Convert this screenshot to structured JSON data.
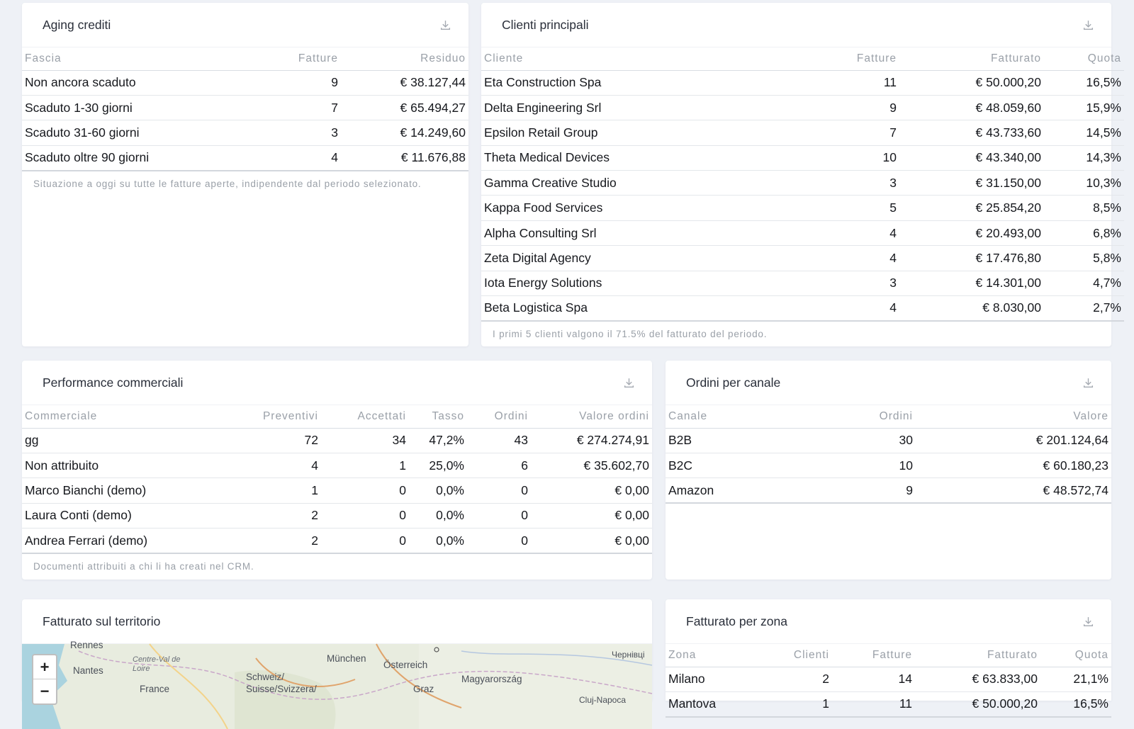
{
  "aging": {
    "title": "Aging crediti",
    "headers": [
      "Fascia",
      "Fatture",
      "Residuo"
    ],
    "rows": [
      [
        "Non ancora scaduto",
        "9",
        "€ 38.127,44"
      ],
      [
        "Scaduto 1-30 giorni",
        "7",
        "€ 65.494,27"
      ],
      [
        "Scaduto 31-60 giorni",
        "3",
        "€ 14.249,60"
      ],
      [
        "Scaduto oltre 90 giorni",
        "4",
        "€ 11.676,88"
      ]
    ],
    "note": "Situazione a oggi su tutte le fatture aperte, indipendente dal periodo selezionato."
  },
  "clienti": {
    "title": "Clienti principali",
    "headers": [
      "Cliente",
      "Fatture",
      "Fatturato",
      "Quota"
    ],
    "rows": [
      [
        "Eta Construction Spa",
        "11",
        "€ 50.000,20",
        "16,5%"
      ],
      [
        "Delta Engineering Srl",
        "9",
        "€ 48.059,60",
        "15,9%"
      ],
      [
        "Epsilon Retail Group",
        "7",
        "€ 43.733,60",
        "14,5%"
      ],
      [
        "Theta Medical Devices",
        "10",
        "€ 43.340,00",
        "14,3%"
      ],
      [
        "Gamma Creative Studio",
        "3",
        "€ 31.150,00",
        "10,3%"
      ],
      [
        "Kappa Food Services",
        "5",
        "€ 25.854,20",
        "8,5%"
      ],
      [
        "Alpha Consulting Srl",
        "4",
        "€ 20.493,00",
        "6,8%"
      ],
      [
        "Zeta Digital Agency",
        "4",
        "€ 17.476,80",
        "5,8%"
      ],
      [
        "Iota Energy Solutions",
        "3",
        "€ 14.301,00",
        "4,7%"
      ],
      [
        "Beta Logistica Spa",
        "4",
        "€ 8.030,00",
        "2,7%"
      ]
    ],
    "note": "I primi 5 clienti valgono il 71.5% del fatturato del periodo."
  },
  "performance": {
    "title": "Performance commerciali",
    "headers": [
      "Commerciale",
      "Preventivi",
      "Accettati",
      "Tasso",
      "Ordini",
      "Valore ordini"
    ],
    "rows": [
      [
        "gg",
        "72",
        "34",
        "47,2%",
        "43",
        "€ 274.274,91"
      ],
      [
        "Non attribuito",
        "4",
        "1",
        "25,0%",
        "6",
        "€ 35.602,70"
      ],
      [
        "Marco Bianchi (demo)",
        "1",
        "0",
        "0,0%",
        "0",
        "€ 0,00"
      ],
      [
        "Laura Conti (demo)",
        "2",
        "0",
        "0,0%",
        "0",
        "€ 0,00"
      ],
      [
        "Andrea Ferrari (demo)",
        "2",
        "0",
        "0,0%",
        "0",
        "€ 0,00"
      ]
    ],
    "note": "Documenti attribuiti a chi li ha creati nel CRM."
  },
  "canale": {
    "title": "Ordini per canale",
    "headers": [
      "Canale",
      "Ordini",
      "Valore"
    ],
    "rows": [
      [
        "B2B",
        "30",
        "€ 201.124,64"
      ],
      [
        "B2C",
        "10",
        "€ 60.180,23"
      ],
      [
        "Amazon",
        "9",
        "€ 48.572,74"
      ]
    ]
  },
  "territorio": {
    "title": "Fatturato sul territorio",
    "zoom_in": "+",
    "zoom_out": "−",
    "labels": [
      "Rennes",
      "Nantes",
      "Centre-Val de Loire",
      "France",
      "München",
      "Österreich",
      "Schweiz/ Suisse/Svizzera/",
      "Magyarország",
      "Graz",
      "Чернівці",
      "Cluj-Napoca"
    ]
  },
  "zona": {
    "title": "Fatturato per zona",
    "headers": [
      "Zona",
      "Clienti",
      "Fatture",
      "Fatturato",
      "Quota"
    ],
    "rows": [
      [
        "Milano",
        "2",
        "14",
        "€ 63.833,00",
        "21,1%"
      ],
      [
        "Mantova",
        "1",
        "11",
        "€ 50.000,20",
        "16,5%"
      ]
    ]
  },
  "colors": {
    "background": "#eef1f6",
    "card": "#ffffff",
    "muted": "#9aa0a8"
  },
  "icons": {
    "download": "download-icon",
    "zoom": "zoom-control"
  }
}
